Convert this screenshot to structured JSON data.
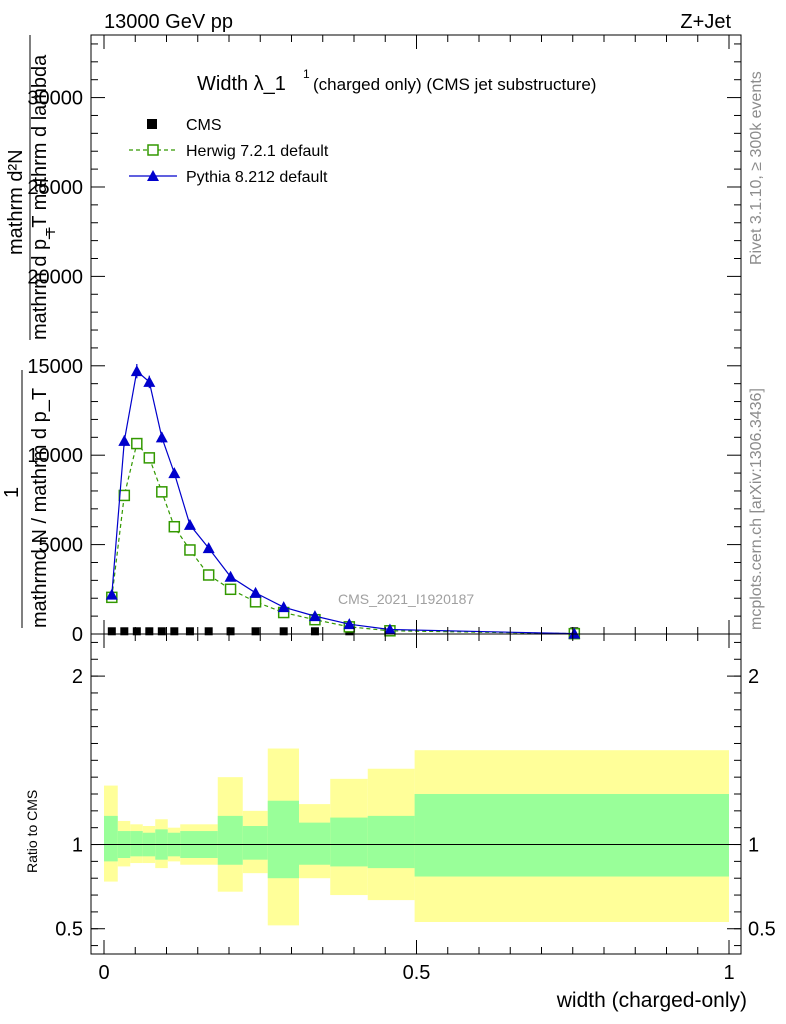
{
  "header": {
    "left_label": "13000 GeV pp",
    "right_label": "Z+Jet",
    "side_label_top": "Rivet 3.1.10, ≥ 300k events",
    "side_label_bottom": "mcplots.cern.ch [arXiv:1306.3436]",
    "watermark": "CMS_2021_I1920187"
  },
  "chart_data": [
    {
      "type": "line",
      "panel": "main",
      "title": "Width λ_1",
      "title_superscript": "1",
      "title_suffix": "(charged only) (CMS jet substructure)",
      "ylabel_top": "mathrm d²N",
      "ylabel_top2": "mathrm d p_T mathrm d lambda",
      "ylabel_top2_sub": "T",
      "ylabel_one": "1",
      "ylabel_bottom": "mathrmd N / mathrm d p_T",
      "xlabel": "",
      "xlim": [
        0,
        1
      ],
      "ylim": [
        0,
        33500
      ],
      "yticks": [
        0,
        5000,
        10000,
        15000,
        20000,
        25000,
        30000
      ],
      "ytick_labels": [
        "0",
        "5000",
        "10000",
        "15000",
        "20000",
        "25000",
        "30000"
      ],
      "legend_position": "top-left",
      "series": [
        {
          "name": "CMS",
          "color": "#000000",
          "marker": "square",
          "x": [
            0.0125,
            0.0325,
            0.0525,
            0.0725,
            0.0925,
            0.1125,
            0.1375,
            0.1675,
            0.2025,
            0.2425,
            0.2875,
            0.3375,
            0.3925,
            0.4575,
            0.7525
          ],
          "y": [
            40,
            40,
            40,
            40,
            40,
            40,
            40,
            40,
            40,
            40,
            40,
            40,
            40,
            40,
            40
          ]
        },
        {
          "name": "Herwig 7.2.1 default",
          "color": "#339900",
          "marker": "open-square",
          "line": "dashed",
          "x": [
            0.0125,
            0.0325,
            0.0525,
            0.0725,
            0.0925,
            0.1125,
            0.1375,
            0.1675,
            0.2025,
            0.2425,
            0.2875,
            0.3375,
            0.3925,
            0.4575,
            0.7525
          ],
          "y": [
            2050,
            7750,
            10650,
            9850,
            7950,
            6000,
            4700,
            3300,
            2500,
            1800,
            1200,
            800,
            400,
            180,
            20
          ]
        },
        {
          "name": "Pythia 8.212 default",
          "color": "#0000cc",
          "marker": "filled-triangle",
          "line": "solid",
          "x": [
            0.0125,
            0.0325,
            0.0525,
            0.0725,
            0.0925,
            0.1125,
            0.1375,
            0.1675,
            0.2025,
            0.2425,
            0.2875,
            0.3375,
            0.3925,
            0.4575,
            0.7525
          ],
          "y": [
            2200,
            10800,
            14700,
            14100,
            11000,
            9000,
            6100,
            4800,
            3200,
            2300,
            1500,
            1000,
            550,
            250,
            20
          ],
          "yerr": [
            150,
            300,
            400,
            350,
            300,
            250,
            200,
            150,
            100,
            80,
            60,
            50,
            30,
            20,
            5
          ]
        }
      ]
    },
    {
      "type": "area",
      "panel": "ratio",
      "ylabel": "Ratio to CMS",
      "xlabel": "width (charged-only)",
      "xlim": [
        0,
        1
      ],
      "ylim": [
        0.35,
        2.25
      ],
      "yticks": [
        0.5,
        1,
        2
      ],
      "ytick_labels": [
        "0.5",
        "1",
        "2"
      ],
      "xticks": [
        0,
        0.5,
        1
      ],
      "xtick_labels": [
        "0",
        "0.5",
        "1"
      ],
      "reference_line": 1,
      "bins": [
        {
          "x0": 0.0,
          "x1": 0.022,
          "inner": [
            0.9,
            1.17
          ],
          "outer": [
            0.78,
            1.35
          ]
        },
        {
          "x0": 0.022,
          "x1": 0.042,
          "inner": [
            0.92,
            1.08
          ],
          "outer": [
            0.87,
            1.14
          ]
        },
        {
          "x0": 0.042,
          "x1": 0.062,
          "inner": [
            0.93,
            1.08
          ],
          "outer": [
            0.89,
            1.12
          ]
        },
        {
          "x0": 0.062,
          "x1": 0.082,
          "inner": [
            0.93,
            1.07
          ],
          "outer": [
            0.89,
            1.11
          ]
        },
        {
          "x0": 0.082,
          "x1": 0.102,
          "inner": [
            0.91,
            1.09
          ],
          "outer": [
            0.86,
            1.15
          ]
        },
        {
          "x0": 0.102,
          "x1": 0.122,
          "inner": [
            0.93,
            1.07
          ],
          "outer": [
            0.9,
            1.1
          ]
        },
        {
          "x0": 0.122,
          "x1": 0.152,
          "inner": [
            0.92,
            1.08
          ],
          "outer": [
            0.88,
            1.12
          ]
        },
        {
          "x0": 0.152,
          "x1": 0.182,
          "inner": [
            0.92,
            1.08
          ],
          "outer": [
            0.88,
            1.12
          ]
        },
        {
          "x0": 0.182,
          "x1": 0.222,
          "inner": [
            0.88,
            1.17
          ],
          "outer": [
            0.72,
            1.4
          ]
        },
        {
          "x0": 0.222,
          "x1": 0.262,
          "inner": [
            0.91,
            1.11
          ],
          "outer": [
            0.83,
            1.2
          ]
        },
        {
          "x0": 0.262,
          "x1": 0.312,
          "inner": [
            0.8,
            1.26
          ],
          "outer": [
            0.52,
            1.57
          ]
        },
        {
          "x0": 0.312,
          "x1": 0.362,
          "inner": [
            0.88,
            1.13
          ],
          "outer": [
            0.8,
            1.24
          ]
        },
        {
          "x0": 0.362,
          "x1": 0.422,
          "inner": [
            0.87,
            1.16
          ],
          "outer": [
            0.7,
            1.39
          ]
        },
        {
          "x0": 0.422,
          "x1": 0.497,
          "inner": [
            0.86,
            1.17
          ],
          "outer": [
            0.67,
            1.45
          ]
        },
        {
          "x0": 0.497,
          "x1": 1.0,
          "inner": [
            0.81,
            1.3
          ],
          "outer": [
            0.54,
            1.56
          ]
        }
      ],
      "colors": {
        "inner": "#99ff99",
        "outer": "#ffff99"
      }
    }
  ]
}
